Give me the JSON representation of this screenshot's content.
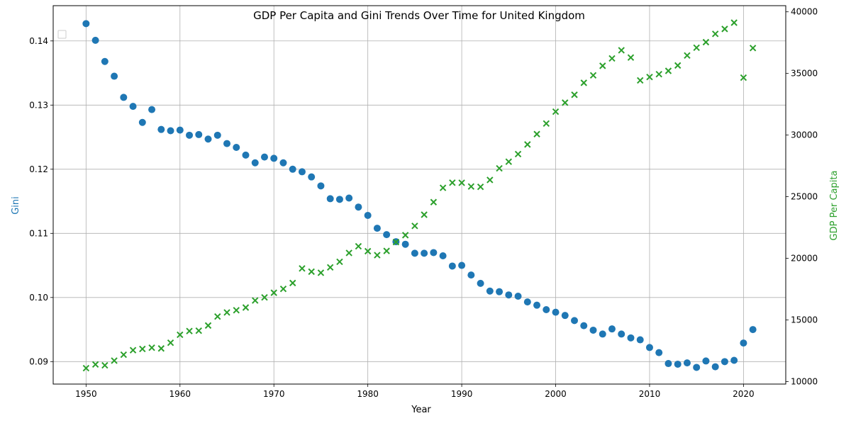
{
  "chart_data": {
    "type": "scatter",
    "title": "GDP Per Capita and Gini Trends Over Time for United Kingdom",
    "xlabel": "Year",
    "ylabel_left": "Gini",
    "ylabel_right": "GDP Per Capita",
    "xlim": [
      1946.5,
      2024.5
    ],
    "ylim_left": [
      0.0865,
      0.1455
    ],
    "ylim_right": [
      9800,
      40500
    ],
    "x_ticks": [
      1950,
      1960,
      1970,
      1980,
      1990,
      2000,
      2010,
      2020
    ],
    "y_left_ticks": [
      0.09,
      0.1,
      0.11,
      0.12,
      0.13,
      0.14
    ],
    "y_left_tick_labels": [
      "0.09",
      "0.10",
      "0.11",
      "0.12",
      "0.13",
      "0.14"
    ],
    "y_right_ticks": [
      10000,
      15000,
      20000,
      25000,
      30000,
      35000,
      40000
    ],
    "y_right_tick_labels": [
      "10000",
      "15000",
      "20000",
      "25000",
      "30000",
      "35000",
      "40000"
    ],
    "grid": true,
    "legend": "top-left (empty)",
    "colors": {
      "gini": "#1f77b4",
      "gdp": "#2ca02c",
      "axis": "#000000",
      "grid": "#b0b0b0"
    },
    "series": [
      {
        "marker": "circle",
        "axis": "left",
        "x": [
          1950,
          1951,
          1952,
          1953,
          1954,
          1955,
          1956,
          1957,
          1958,
          1959,
          1960,
          1961,
          1962,
          1963,
          1964,
          1965,
          1966,
          1967,
          1968,
          1969,
          1970,
          1971,
          1972,
          1973,
          1974,
          1975,
          1976,
          1977,
          1978,
          1979,
          1980,
          1981,
          1982,
          1983,
          1984,
          1985,
          1986,
          1987,
          1988,
          1989,
          1990,
          1991,
          1992,
          1993,
          1994,
          1995,
          1996,
          1997,
          1998,
          1999,
          2000,
          2001,
          2002,
          2003,
          2004,
          2005,
          2006,
          2007,
          2008,
          2009,
          2010,
          2011,
          2012,
          2013,
          2014,
          2015,
          2016,
          2017,
          2018,
          2019,
          2020,
          2021
        ],
        "values": [
          0.1427,
          0.1401,
          0.1368,
          0.1345,
          0.1312,
          0.1298,
          0.1273,
          0.1293,
          0.1262,
          0.126,
          0.1261,
          0.1253,
          0.1254,
          0.1247,
          0.1253,
          0.124,
          0.1234,
          0.1222,
          0.121,
          0.1219,
          0.1217,
          0.121,
          0.12,
          0.1196,
          0.1188,
          0.1174,
          0.1154,
          0.1153,
          0.1155,
          0.1141,
          0.1128,
          0.1108,
          0.1098,
          0.1087,
          0.1083,
          0.1069,
          0.1069,
          0.107,
          0.1065,
          0.1049,
          0.105,
          0.1035,
          0.1022,
          0.101,
          0.1009,
          0.1004,
          0.1002,
          0.0993,
          0.0988,
          0.0981,
          0.0977,
          0.0972,
          0.0964,
          0.0956,
          0.0949,
          0.0943,
          0.0951,
          0.0943,
          0.0937,
          0.0934,
          0.0922,
          0.0914,
          0.0897,
          0.0896,
          0.0898,
          0.0891,
          0.0901,
          0.0892,
          0.09,
          0.0902,
          0.0929,
          0.095
        ]
      },
      {
        "marker": "x",
        "axis": "right",
        "x": [
          1950,
          1951,
          1952,
          1953,
          1954,
          1955,
          1956,
          1957,
          1958,
          1959,
          1960,
          1961,
          1962,
          1963,
          1964,
          1965,
          1966,
          1967,
          1968,
          1969,
          1970,
          1971,
          1972,
          1973,
          1974,
          1975,
          1976,
          1977,
          1978,
          1979,
          1980,
          1981,
          1982,
          1983,
          1984,
          1985,
          1986,
          1987,
          1988,
          1989,
          1990,
          1991,
          1992,
          1993,
          1994,
          1995,
          1996,
          1997,
          1998,
          1999,
          2000,
          2001,
          2002,
          2003,
          2004,
          2005,
          2006,
          2007,
          2008,
          2009,
          2010,
          2011,
          2012,
          2013,
          2014,
          2015,
          2016,
          2017,
          2018,
          2019,
          2020,
          2021
        ],
        "values": [
          11090,
          11390,
          11320,
          11700,
          12180,
          12550,
          12650,
          12750,
          12690,
          13150,
          13800,
          14100,
          14130,
          14550,
          15280,
          15610,
          15790,
          16010,
          16580,
          16830,
          17210,
          17520,
          18000,
          19180,
          18920,
          18830,
          19270,
          19720,
          20440,
          20980,
          20580,
          20260,
          20600,
          21320,
          21880,
          22630,
          23540,
          24560,
          25720,
          26140,
          26130,
          25830,
          25800,
          26360,
          27300,
          27840,
          28460,
          29240,
          30080,
          30940,
          31900,
          32630,
          33270,
          34240,
          34850,
          35620,
          36220,
          36880,
          36290,
          34440,
          34710,
          34940,
          35210,
          35650,
          36460,
          37090,
          37540,
          38210,
          38610,
          39120,
          34660,
          37060
        ]
      }
    ]
  }
}
